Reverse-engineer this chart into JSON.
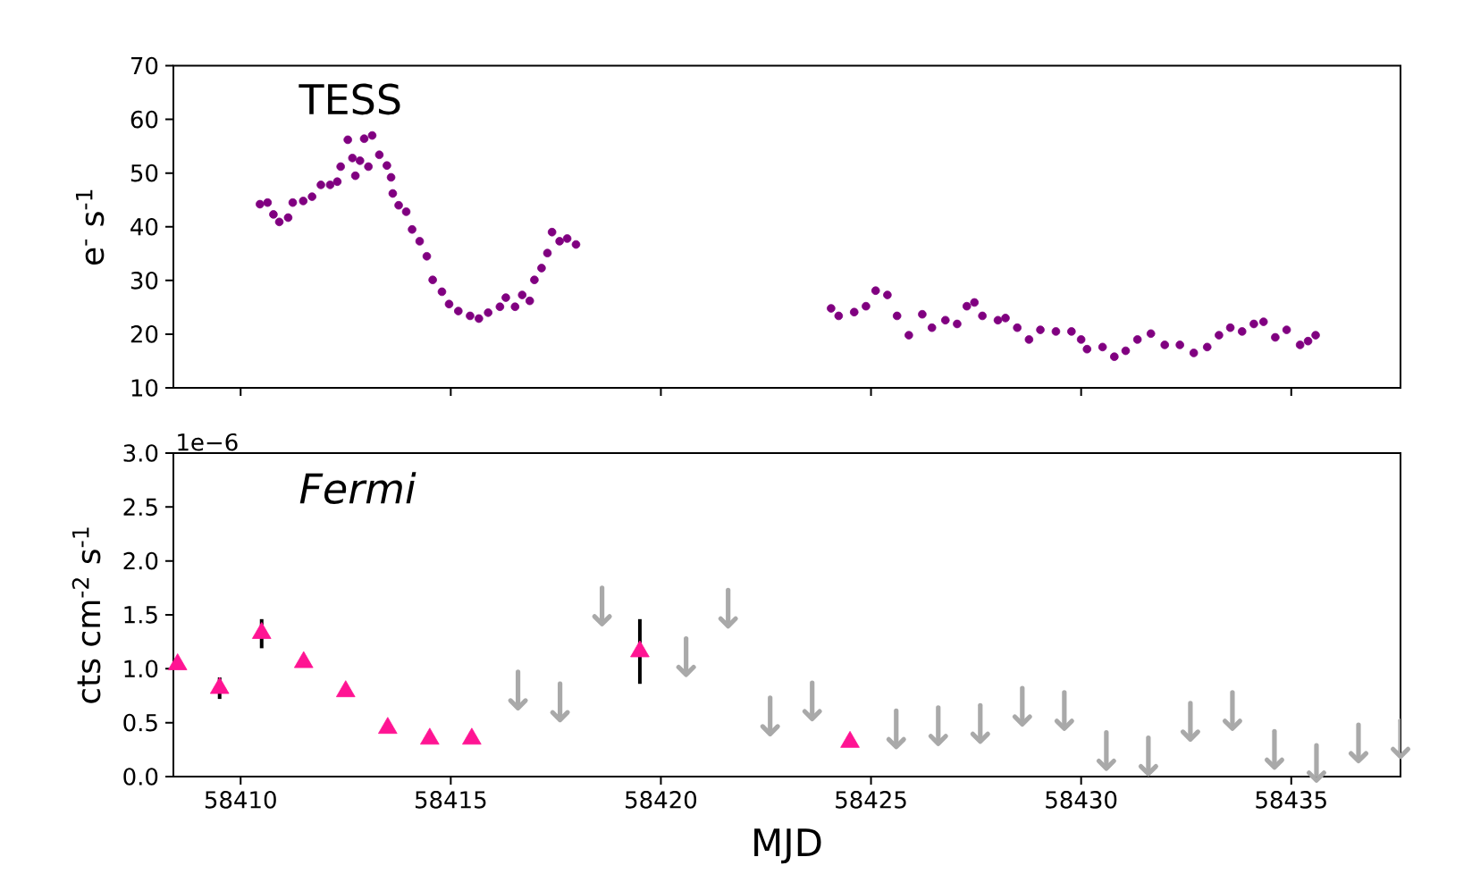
{
  "chart_data": [
    {
      "type": "scatter",
      "ylabel": "e$^{-}$ s$^{-1}$",
      "annotations": [
        "TESS"
      ],
      "tick_labels": "y",
      "marker": "circle",
      "color": "#800080",
      "xlim": [
        58408.4,
        58437.6
      ],
      "xticks": [
        58410,
        58415,
        58420,
        58425,
        58430,
        58435
      ],
      "ylim": [
        10,
        70
      ],
      "yticks": [
        10,
        20,
        30,
        40,
        50,
        60,
        70
      ],
      "x": [
        58410.46,
        58410.64,
        58410.78,
        58410.92,
        58411.13,
        58411.24,
        58411.49,
        58411.7,
        58411.91,
        58412.13,
        58412.3,
        58412.38,
        58412.55,
        58412.66,
        58412.73,
        58412.84,
        58412.94,
        58413.04,
        58413.13,
        58413.3,
        58413.48,
        58413.58,
        58413.62,
        58413.76,
        58413.94,
        58414.08,
        58414.26,
        58414.43,
        58414.57,
        58414.79,
        58414.96,
        58415.18,
        58415.46,
        58415.67,
        58415.89,
        58416.17,
        58416.31,
        58416.53,
        58416.7,
        58416.88,
        58416.99,
        58417.16,
        58417.3,
        58417.41,
        58417.59,
        58417.77,
        58417.98,
        58424.05,
        58424.23,
        58424.6,
        58424.88,
        58425.11,
        58425.39,
        58425.62,
        58425.9,
        58426.22,
        58426.45,
        58426.77,
        58427.05,
        58427.28,
        58427.46,
        58427.65,
        58428.02,
        58428.2,
        58428.48,
        58428.76,
        58429.03,
        58429.4,
        58429.77,
        58430.0,
        58430.14,
        58430.51,
        58430.79,
        58431.06,
        58431.34,
        58431.66,
        58431.99,
        58432.35,
        58432.68,
        58433.0,
        58433.28,
        58433.55,
        58433.83,
        58434.11,
        58434.34,
        58434.62,
        58434.89,
        58435.21,
        58435.4,
        58435.58
      ],
      "values": [
        44.2,
        44.5,
        42.3,
        40.9,
        41.7,
        44.5,
        44.8,
        45.6,
        47.8,
        47.8,
        48.4,
        51.2,
        56.2,
        52.8,
        49.5,
        52.3,
        56.4,
        51.2,
        57.0,
        53.4,
        51.4,
        49.2,
        46.2,
        44.0,
        42.8,
        39.5,
        37.3,
        34.5,
        30.1,
        27.9,
        25.6,
        24.3,
        23.4,
        22.9,
        24.0,
        25.1,
        26.8,
        25.1,
        27.3,
        26.2,
        30.1,
        32.3,
        35.1,
        39.0,
        37.3,
        37.8,
        36.7,
        24.8,
        23.4,
        24.1,
        25.2,
        28.1,
        27.3,
        23.4,
        19.8,
        23.7,
        21.2,
        22.6,
        21.9,
        25.2,
        25.9,
        23.4,
        22.6,
        23.0,
        21.2,
        19.0,
        20.8,
        20.5,
        20.5,
        19.0,
        17.2,
        17.6,
        15.8,
        16.9,
        19.0,
        20.1,
        18.0,
        18.0,
        16.5,
        17.6,
        19.8,
        21.2,
        20.5,
        21.9,
        22.3,
        19.4,
        20.8,
        18.0,
        18.7,
        19.8
      ]
    },
    {
      "type": "scatter",
      "xlabel": "MJD",
      "ylabel": "cts cm$^{-2}$ s$^{-1}$",
      "annotations": [
        "Fermi",
        "1e−6"
      ],
      "xlim": [
        58408.4,
        58437.6
      ],
      "xticks": [
        58410,
        58415,
        58420,
        58425,
        58430,
        58435
      ],
      "ylim": [
        0,
        3
      ],
      "yticks": [
        {
          "value": 0,
          "label": "0.0"
        },
        {
          "value": 0.5,
          "label": "0.5"
        },
        {
          "value": 1,
          "label": "1.0"
        },
        {
          "value": 1.5,
          "label": "1.5"
        },
        {
          "value": 2,
          "label": "2.0"
        },
        {
          "value": 2.5,
          "label": "2.5"
        },
        {
          "value": 3,
          "label": "3.0"
        }
      ],
      "series": [
        {
          "color": "#ff1493",
          "marker": "triangle",
          "x": [
            58408.5,
            58409.5,
            58410.5,
            58411.5,
            58412.5,
            58413.5,
            58414.5,
            58415.5,
            58419.5,
            58424.5
          ],
          "values": [
            1.04,
            0.82,
            1.33,
            1.06,
            0.79,
            0.45,
            0.35,
            0.35,
            1.16,
            0.32
          ],
          "errors": [
            null,
            [
              0.72,
              0.92
            ],
            [
              1.19,
              1.46
            ],
            null,
            null,
            null,
            null,
            null,
            [
              0.86,
              1.46
            ],
            null
          ]
        },
        {
          "color": "#a9a9a9",
          "x": [
            58416.6,
            58417.6,
            58418.6,
            58420.6,
            58421.6,
            58422.6,
            58423.6,
            58425.6,
            58426.6,
            58427.6,
            58428.6,
            58429.6,
            58430.6,
            58431.6,
            58432.6,
            58433.6,
            58434.6,
            58435.6,
            58436.6,
            58437.6
          ],
          "values": [
            0.67,
            0.56,
            1.45,
            0.98,
            1.43,
            0.43,
            0.57,
            0.31,
            0.34,
            0.36,
            0.52,
            0.48,
            0.11,
            0.06,
            0.38,
            0.48,
            0.12,
            0.0,
            0.18,
            0.22
          ],
          "errors": [
            [
              0.67,
              0.97
            ],
            [
              0.56,
              0.86
            ],
            [
              1.45,
              1.75
            ],
            [
              0.98,
              1.28
            ],
            [
              1.43,
              1.73
            ],
            [
              0.43,
              0.73
            ],
            [
              0.57,
              0.87
            ],
            [
              0.31,
              0.61
            ],
            [
              0.34,
              0.64
            ],
            [
              0.36,
              0.66
            ],
            [
              0.52,
              0.82
            ],
            [
              0.48,
              0.78
            ],
            [
              0.11,
              0.41
            ],
            [
              0.06,
              0.36
            ],
            [
              0.38,
              0.68
            ],
            [
              0.48,
              0.78
            ],
            [
              0.12,
              0.42
            ],
            [
              0.0,
              0.29
            ],
            [
              0.18,
              0.48
            ],
            [
              0.22,
              0.52
            ]
          ]
        }
      ]
    }
  ]
}
